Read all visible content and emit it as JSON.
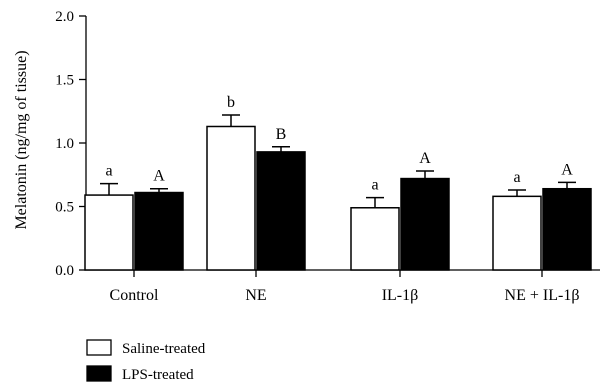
{
  "chart_data": {
    "type": "bar",
    "ylabel": "Melatonin (ng/mg of tissue)",
    "ylim": [
      0,
      2.0
    ],
    "yticks": [
      "0.0",
      "0.5",
      "1.0",
      "1.5",
      "2.0"
    ],
    "categories": [
      "Control",
      "NE",
      "IL-1β",
      "NE + IL-1β"
    ],
    "series": [
      {
        "name": "Saline-treated",
        "color": "#ffffff",
        "values": [
          0.59,
          1.13,
          0.49,
          0.58
        ],
        "errors": [
          0.09,
          0.09,
          0.08,
          0.05
        ],
        "labels": [
          "a",
          "b",
          "a",
          "a"
        ]
      },
      {
        "name": "LPS-treated",
        "color": "#000000",
        "values": [
          0.61,
          0.93,
          0.72,
          0.64
        ],
        "errors": [
          0.03,
          0.04,
          0.06,
          0.05
        ],
        "labels": [
          "A",
          "B",
          "A",
          "A"
        ]
      }
    ],
    "legend_position": "bottom-left"
  }
}
